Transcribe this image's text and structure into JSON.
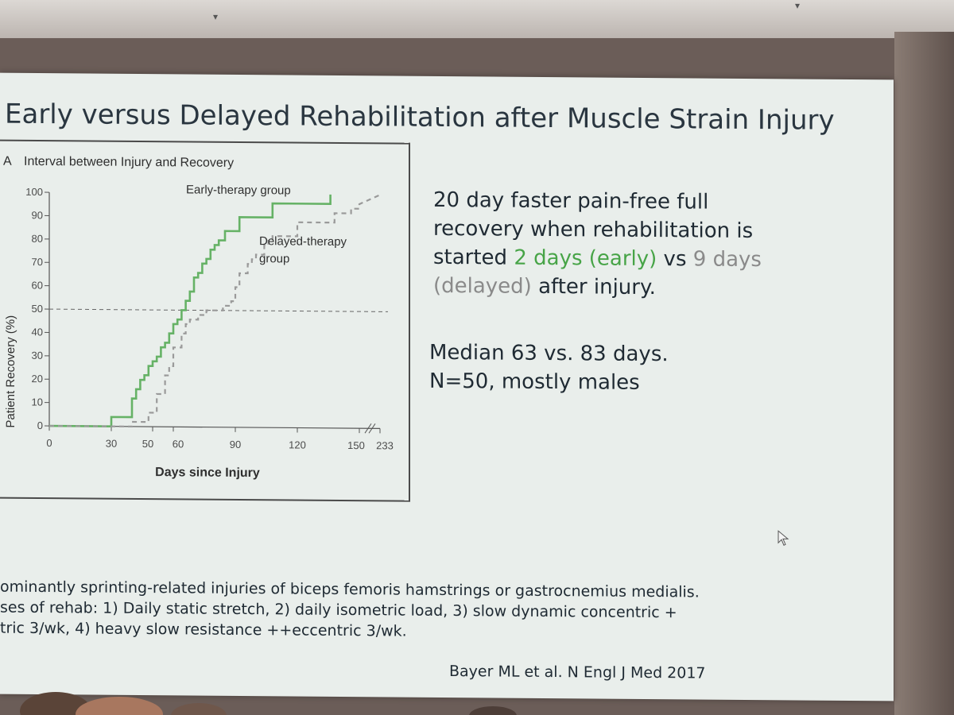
{
  "slide": {
    "title": "Early versus Delayed Rehabilitation after Muscle Strain Injury",
    "summary_parts": [
      "20 day faster pain-free full recovery when rehabilitation is started ",
      "2 days (early)",
      " vs ",
      "9 days (delayed)",
      " after injury."
    ],
    "median_line": "Median 63 vs. 83 days.",
    "n_line": "N=50, mostly males",
    "footnotes": [
      "ominantly sprinting-related injuries of biceps femoris hamstrings or gastrocnemius medialis.",
      "ses of rehab: 1) Daily static stretch, 2) daily isometric load, 3) slow dynamic concentric +",
      "tric 3/wk, 4) heavy slow resistance ++eccentric 3/wk."
    ],
    "citation": "Bayer ML et al. N Engl J Med 2017",
    "colors": {
      "accent_green": "#47a447",
      "delayed_gray": "#8a8a8a",
      "slide_bg": "#e9eeeb"
    }
  },
  "chart_data": {
    "type": "line",
    "panel_letter": "A",
    "title": "Interval between Injury and Recovery",
    "xlabel": "Days since Injury",
    "ylabel": "Patient Recovery (%)",
    "x_ticks": [
      "0",
      "30",
      "50",
      "60",
      "90",
      "120",
      "150",
      "233"
    ],
    "x_tick_values": [
      0,
      30,
      50,
      60,
      90,
      120,
      150,
      160
    ],
    "axis_break_after": 150,
    "y_ticks": [
      "0",
      "10",
      "20",
      "30",
      "40",
      "50",
      "60",
      "70",
      "80",
      "90",
      "100"
    ],
    "xlim": [
      0,
      160
    ],
    "ylim": [
      0,
      100
    ],
    "median_reference_y": 50,
    "series": [
      {
        "name": "Early-therapy group",
        "color": "#66b266",
        "style": "solid",
        "x": [
          0,
          30,
          30,
          40,
          40,
          42,
          42,
          44,
          44,
          46,
          46,
          48,
          48,
          50,
          50,
          52,
          52,
          54,
          54,
          56,
          56,
          58,
          58,
          60,
          60,
          62,
          62,
          64,
          64,
          66,
          66,
          68,
          68,
          70,
          70,
          72,
          72,
          74,
          74,
          76,
          76,
          78,
          78,
          80,
          80,
          82,
          82,
          85,
          85,
          88,
          88,
          92,
          92,
          95,
          95,
          108,
          108,
          136,
          136
        ],
        "y": [
          0,
          0,
          4,
          4,
          12,
          12,
          16,
          16,
          20,
          20,
          22,
          22,
          26,
          26,
          28,
          28,
          30,
          30,
          34,
          34,
          36,
          36,
          40,
          40,
          44,
          44,
          46,
          46,
          50,
          50,
          54,
          54,
          58,
          58,
          64,
          64,
          66,
          66,
          70,
          70,
          72,
          72,
          76,
          76,
          78,
          78,
          80,
          80,
          84,
          84,
          84,
          84,
          90,
          90,
          90,
          90,
          96,
          96,
          100
        ]
      },
      {
        "name": "Delayed-therapy group",
        "color": "#9a9a9a",
        "style": "dashed",
        "x": [
          0,
          40,
          40,
          48,
          48,
          52,
          52,
          56,
          56,
          58,
          58,
          60,
          60,
          64,
          64,
          66,
          66,
          68,
          68,
          72,
          72,
          76,
          76,
          80,
          80,
          84,
          84,
          88,
          88,
          90,
          90,
          92,
          92,
          96,
          96,
          98,
          98,
          100,
          100,
          104,
          104,
          106,
          106,
          108,
          108,
          120,
          120,
          138,
          138,
          146,
          146,
          150,
          150,
          160
        ],
        "y": [
          0,
          0,
          2,
          2,
          6,
          6,
          14,
          14,
          22,
          22,
          26,
          26,
          34,
          34,
          40,
          40,
          44,
          44,
          46,
          46,
          48,
          48,
          50,
          50,
          50,
          50,
          52,
          52,
          54,
          54,
          60,
          60,
          66,
          66,
          70,
          70,
          72,
          72,
          74,
          74,
          78,
          78,
          80,
          80,
          82,
          82,
          88,
          88,
          92,
          92,
          94,
          94,
          96,
          100
        ]
      }
    ],
    "annotations": [
      {
        "text": "Early-therapy group"
      },
      {
        "text": "Delayed-therapy group"
      }
    ]
  }
}
